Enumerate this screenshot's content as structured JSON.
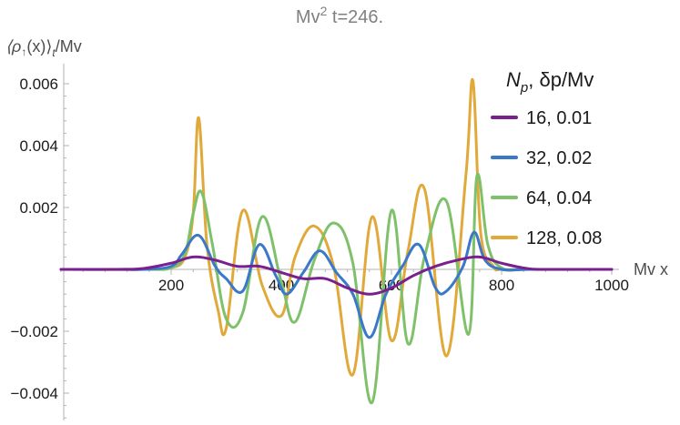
{
  "chart_data": {
    "type": "line",
    "title": "Mv² t=246.",
    "title_main": "Mv",
    "title_sup": "2",
    "title_rest": " t=246.",
    "ylabel": "⟨ρ↑(x)⟩t/Mv",
    "ylabel_parts": {
      "open": "⟨ρ",
      "arrow": "↑",
      "mid": "(x)⟩",
      "sub": "t",
      "tail": "/Mv"
    },
    "xlabel": "Mv x",
    "xlim": [
      0,
      1000
    ],
    "ylim": [
      -0.0049,
      0.0062
    ],
    "x_ticks": [
      {
        "value": 200,
        "label": "200"
      },
      {
        "value": 400,
        "label": "400"
      },
      {
        "value": 600,
        "label": "600"
      },
      {
        "value": 800,
        "label": "800"
      },
      {
        "value": 1000,
        "label": "1000"
      }
    ],
    "y_ticks": [
      {
        "value": -0.004,
        "label": "−0.004"
      },
      {
        "value": -0.002,
        "label": "−0.002"
      },
      {
        "value": 0.002,
        "label": "0.002"
      },
      {
        "value": 0.004,
        "label": "0.004"
      },
      {
        "value": 0.006,
        "label": "0.006"
      }
    ],
    "grid": false,
    "legend_position": "top-right",
    "legend_title": "Np, δp/Mv",
    "legend_title_parts": {
      "n": "N",
      "sub": "p",
      "rest": ", δp/Mv"
    },
    "series": [
      {
        "name": "16, 0.01",
        "color": "#7a1f8e",
        "x": [
          0,
          100,
          150,
          200,
          240,
          280,
          320,
          360,
          400,
          440,
          480,
          520,
          560,
          600,
          640,
          680,
          720,
          760,
          800,
          850,
          900,
          1000
        ],
        "y": [
          0,
          0,
          3e-05,
          0.0002,
          0.0004,
          0.0003,
          0.0001,
          0.0001,
          -0.0001,
          -0.0003,
          -0.0003,
          -0.0006,
          -0.0008,
          -0.0006,
          -0.0002,
          0.0001,
          0.0003,
          0.0004,
          0.0002,
          2e-05,
          0,
          0
        ]
      },
      {
        "name": "32, 0.02",
        "color": "#3a78c9",
        "x": [
          0,
          100,
          150,
          200,
          220,
          250,
          280,
          300,
          330,
          360,
          390,
          410,
          440,
          470,
          500,
          530,
          560,
          590,
          620,
          650,
          680,
          700,
          730,
          750,
          770,
          800,
          850,
          900,
          1000
        ],
        "y": [
          0,
          0,
          0,
          0.0001,
          0.0005,
          0.0011,
          0.0001,
          -0.0003,
          -0.0007,
          0.0008,
          -0.0002,
          -0.0008,
          -0.0001,
          0.0006,
          -0.0001,
          -0.0008,
          -0.0022,
          -0.0008,
          0.0001,
          0.0008,
          -0.0006,
          -0.0007,
          0.0001,
          0.0012,
          0.0003,
          0,
          0,
          0,
          0
        ]
      },
      {
        "name": "64, 0.04",
        "color": "#7ec16a",
        "x": [
          0,
          150,
          200,
          225,
          240,
          255,
          275,
          300,
          330,
          365,
          400,
          425,
          460,
          495,
          530,
          565,
          600,
          630,
          660,
          700,
          740,
          755,
          775,
          800,
          850,
          1000
        ],
        "y": [
          0,
          0,
          5e-05,
          0.0005,
          0.0018,
          0.0025,
          0.0008,
          -0.0016,
          -0.0014,
          0.0017,
          -0.0004,
          -0.0017,
          0.0003,
          0.0015,
          0.0002,
          -0.0043,
          0.0019,
          -0.0024,
          0.0004,
          0.0022,
          -0.0021,
          0.003,
          0.0008,
          5e-05,
          0,
          0
        ]
      },
      {
        "name": "128, 0.08",
        "color": "#e0a93a",
        "x": [
          0,
          150,
          200,
          225,
          240,
          250,
          265,
          285,
          300,
          330,
          365,
          400,
          425,
          460,
          495,
          530,
          565,
          600,
          630,
          660,
          700,
          735,
          748,
          762,
          785,
          800,
          850,
          1000
        ],
        "y": [
          0,
          0,
          5e-05,
          0.0004,
          0.0018,
          0.0049,
          0.0008,
          -0.0013,
          -0.0019,
          0.0019,
          -0.0005,
          -0.0015,
          0.0004,
          0.0014,
          0.0001,
          -0.0034,
          0.0017,
          -0.0023,
          0.0006,
          0.0026,
          -0.0028,
          0.003,
          0.0061,
          0.0012,
          0.0001,
          0,
          0,
          0
        ]
      }
    ]
  }
}
